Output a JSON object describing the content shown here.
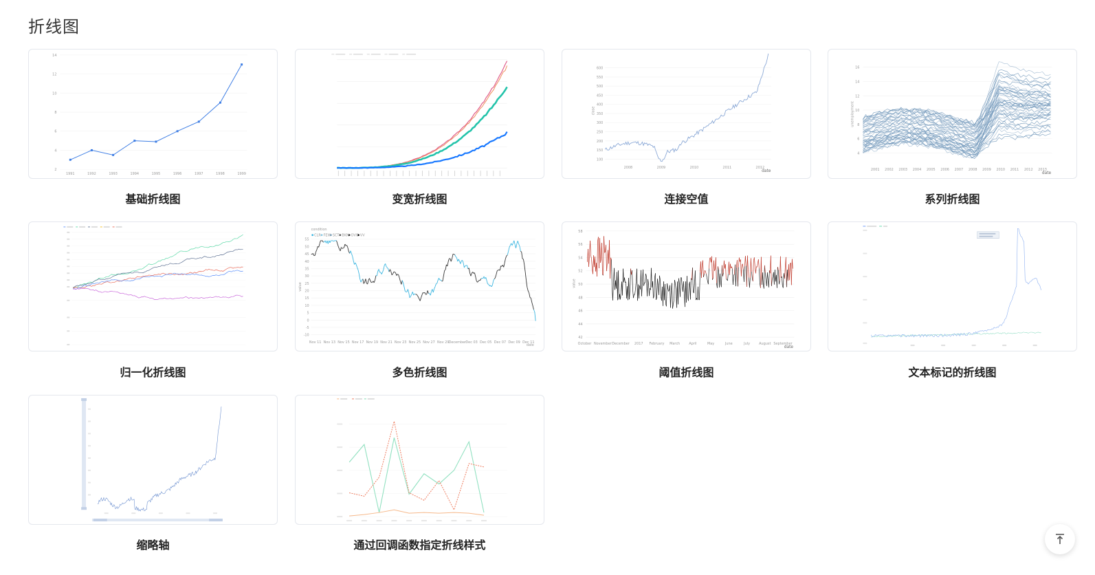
{
  "page": {
    "title": "折线图"
  },
  "cards": [
    {
      "label": "基础折线图"
    },
    {
      "label": "变宽折线图"
    },
    {
      "label": "连接空值"
    },
    {
      "label": "系列折线图"
    },
    {
      "label": "归一化折线图"
    },
    {
      "label": "多色折线图"
    },
    {
      "label": "阈值折线图"
    },
    {
      "label": "文本标记的折线图"
    },
    {
      "label": "缩略轴"
    },
    {
      "label": "通过回调函数指定折线样式"
    }
  ],
  "thumb1": {
    "x": [
      "1991",
      "1992",
      "1993",
      "1994",
      "1995",
      "1996",
      "1997",
      "1998",
      "1999"
    ],
    "values": [
      3,
      4,
      3.5,
      5,
      4.9,
      6,
      7,
      9,
      13
    ],
    "yticks": [
      "14",
      "12",
      "10",
      "8",
      "6",
      "4",
      "2"
    ],
    "color": "#3d7de4"
  },
  "thumb3": {
    "x": [
      "2008",
      "2009",
      "2010",
      "2011",
      "2012"
    ],
    "yticks": [
      "600",
      "550",
      "500",
      "450",
      "400",
      "350",
      "300",
      "250",
      "200",
      "150",
      "100"
    ],
    "ylabel": "close",
    "xlabel": "date"
  },
  "thumb4": {
    "x": [
      "2001",
      "2002",
      "2003",
      "2004",
      "2005",
      "2006",
      "2007",
      "2008",
      "2009",
      "2010",
      "2011",
      "2012",
      "2013"
    ],
    "yticks": [
      "16",
      "14",
      "12",
      "10",
      "8",
      "6",
      "4"
    ],
    "ylabel": "unemployment",
    "xlabel": "date"
  },
  "thumb6": {
    "legend_title": "condition",
    "legend": [
      "CLR",
      "FEW",
      "SCT",
      "BKN",
      "OVC",
      "VV"
    ],
    "yticks": [
      "55",
      "50",
      "45",
      "40",
      "35",
      "30",
      "25",
      "20",
      "15",
      "10",
      "5",
      "0",
      "-5",
      "-10"
    ],
    "x": [
      "Nov 11",
      "Nov 13",
      "Nov 15",
      "Nov 17",
      "Nov 19",
      "Nov 21",
      "Nov 23",
      "Nov 25",
      "Nov 27",
      "Nov 29",
      "December",
      "Dec 03",
      "Dec 05",
      "Dec 07",
      "Dec 09",
      "Dec 11"
    ],
    "ylabel": "value",
    "xlabel": "date"
  },
  "thumb7": {
    "yticks": [
      "58",
      "56",
      "54",
      "52",
      "50",
      "48",
      "46",
      "44",
      "42"
    ],
    "x": [
      "October",
      "November",
      "December",
      "2017",
      "February",
      "March",
      "April",
      "May",
      "June",
      "July",
      "August",
      "September"
    ],
    "ylabel": "value",
    "xlabel": "date"
  },
  "colors": {
    "accent": "#3d7de4",
    "thumb_line": "#5b8ff9",
    "threshold_red": "#c0392b",
    "threshold_black": "#222222"
  },
  "icons": {
    "back_top": "arrow-up-to-line-icon"
  }
}
